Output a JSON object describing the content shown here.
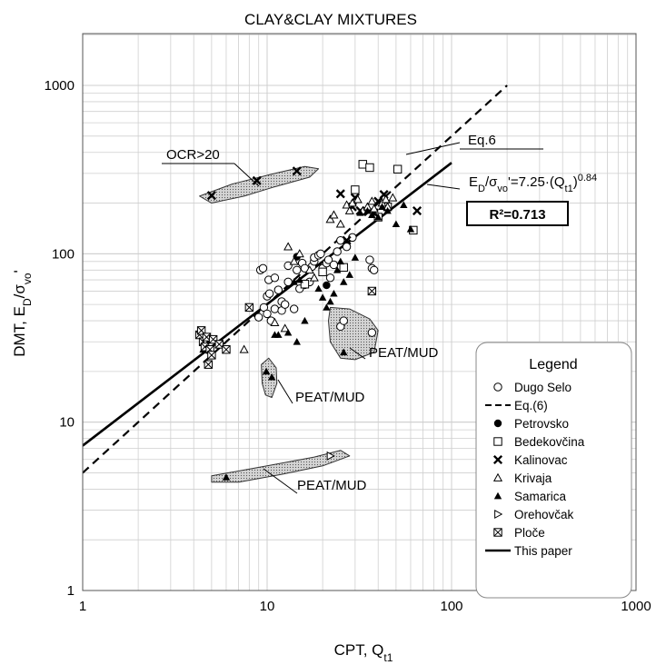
{
  "chart_data": {
    "type": "scatter",
    "title": "CLAY&CLAY MIXTURES",
    "xlabel": {
      "main": "CPT, Q",
      "sub": "t1"
    },
    "ylabel": {
      "prefix": "DMT, E",
      "sub1": "D",
      "mid": "/σ",
      "sub2": "vo",
      "suffix": "'"
    },
    "xscale": "log",
    "yscale": "log",
    "xlim": [
      1,
      1000
    ],
    "ylim": [
      1,
      2000
    ],
    "xticks": [
      "1",
      "10",
      "100",
      "1000"
    ],
    "yticks": [
      "1",
      "10",
      "100",
      "1000"
    ],
    "grid": true,
    "legend": {
      "title": "Legend",
      "placement": "bottom-right",
      "entries": [
        {
          "label": "Dugo Selo",
          "marker": "circle-open"
        },
        {
          "label": "Eq.(6)",
          "marker": "dashed-line"
        },
        {
          "label": "Petrovsko",
          "marker": "circle-filled"
        },
        {
          "label": "Bedekovčina",
          "marker": "square-open"
        },
        {
          "label": "Kalinovac",
          "marker": "x-cross"
        },
        {
          "label": "Krivaja",
          "marker": "triangle-open"
        },
        {
          "label": "Samarica",
          "marker": "triangle-filled"
        },
        {
          "label": "Orehovčak",
          "marker": "triangle-right-open"
        },
        {
          "label": "Ploče",
          "marker": "square-crossed"
        },
        {
          "label": "This paper",
          "marker": "solid-line"
        }
      ]
    },
    "lines": [
      {
        "name": "Eq.6",
        "style": "dashed",
        "x": [
          1,
          200
        ],
        "y": [
          5.0,
          1000
        ]
      },
      {
        "name": "This paper",
        "style": "solid",
        "x": [
          1,
          100
        ],
        "y": [
          7.25,
          347
        ]
      }
    ],
    "annotations": {
      "eq6": "Eq.6",
      "fit_equation": {
        "a": "E",
        "b": "D",
        "c": "/σ",
        "d": "vo",
        "e": "'=7.25·(Q",
        "f": "t1",
        "g": ")",
        "h": "0.84"
      },
      "r2": "R²=0.713",
      "ocr": "OCR>20",
      "peat1": "PEAT/MUD",
      "peat2": "PEAT/MUD",
      "peat3": "PEAT/MUD"
    },
    "regions": [
      {
        "label": "OCR>20",
        "center": [
          9,
          260
        ],
        "points": [
          [
            4.3,
            220
          ],
          [
            6.5,
            260
          ],
          [
            11,
            300
          ],
          [
            16,
            330
          ],
          [
            19,
            320
          ],
          [
            17,
            285
          ],
          [
            11,
            250
          ],
          [
            7.5,
            220
          ],
          [
            5,
            200
          ]
        ]
      },
      {
        "label": "PEAT/MUD",
        "points": [
          [
            22,
            48
          ],
          [
            28,
            47
          ],
          [
            36,
            41
          ],
          [
            40,
            35
          ],
          [
            38,
            26
          ],
          [
            30,
            23.5
          ],
          [
            25,
            24
          ],
          [
            22,
            30
          ],
          [
            21.5,
            40
          ]
        ]
      },
      {
        "label": "PEAT/MUD",
        "points": [
          [
            9.3,
            22
          ],
          [
            10.2,
            24
          ],
          [
            11.2,
            21
          ],
          [
            11.3,
            17
          ],
          [
            10.6,
            14
          ],
          [
            9.8,
            14.5
          ],
          [
            9.4,
            17
          ]
        ]
      },
      {
        "label": "PEAT/MUD",
        "points": [
          [
            5,
            4.8
          ],
          [
            10,
            5.5
          ],
          [
            18,
            6.2
          ],
          [
            25,
            6.8
          ],
          [
            28,
            6.3
          ],
          [
            20,
            5.5
          ],
          [
            12,
            4.9
          ],
          [
            7,
            4.4
          ],
          [
            5,
            4.4
          ]
        ]
      }
    ],
    "series": [
      {
        "name": "Dugo Selo",
        "marker": "circle-open",
        "x": [
          9.0,
          9.2,
          9.5,
          9.6,
          10,
          10,
          10.2,
          10.3,
          10.5,
          11,
          11,
          11.5,
          12,
          12,
          12.5,
          13,
          13,
          14,
          14.5,
          15,
          15.5,
          16,
          17,
          17.5,
          18,
          18,
          19,
          19.5,
          20,
          21,
          21.5,
          22,
          23,
          24,
          25,
          27,
          29,
          36,
          37,
          38,
          25,
          26,
          37
        ],
        "y": [
          42,
          80,
          82,
          48,
          44,
          56,
          70,
          58,
          40,
          47,
          72,
          61,
          52,
          46,
          50,
          68,
          85,
          47,
          80,
          62,
          88,
          82,
          68,
          84,
          90,
          95,
          98,
          100,
          82,
          88,
          92,
          72,
          86,
          103,
          120,
          110,
          125,
          92,
          82,
          80,
          37,
          40,
          34
        ]
      },
      {
        "name": "Petrovsko",
        "marker": "circle-filled",
        "x": [
          14.5,
          16,
          21
        ],
        "y": [
          96,
          65,
          65
        ]
      },
      {
        "name": "Bedekovčina",
        "marker": "square-open",
        "x": [
          16,
          20,
          26,
          30,
          33,
          36,
          40,
          45,
          51,
          62
        ],
        "y": [
          66,
          78,
          83,
          240,
          340,
          325,
          165,
          190,
          318,
          138
        ]
      },
      {
        "name": "Kalinovac",
        "marker": "x-cross",
        "x": [
          5,
          8.8,
          14.5,
          25,
          27,
          29,
          30,
          32,
          38,
          40,
          43,
          65
        ],
        "y": [
          222,
          272,
          310,
          227,
          120,
          190,
          215,
          180,
          175,
          205,
          225,
          180
        ]
      },
      {
        "name": "Krivaja",
        "marker": "triangle-open",
        "x": [
          7.5,
          11,
          12.5,
          13,
          14,
          15,
          17,
          18,
          22,
          23,
          25,
          27,
          28,
          29,
          31,
          33,
          35,
          37,
          38,
          42,
          44,
          45,
          48
        ],
        "y": [
          27,
          39,
          36,
          110,
          90,
          100,
          80,
          72,
          160,
          170,
          150,
          195,
          180,
          200,
          210,
          180,
          190,
          205,
          185,
          200,
          210,
          190,
          215
        ]
      },
      {
        "name": "Samarica",
        "marker": "triangle-filled",
        "x": [
          4.5,
          4.6,
          4.7,
          6,
          9.9,
          10.6,
          11,
          11.5,
          13,
          14,
          14.5,
          15,
          16,
          19,
          20,
          21,
          22,
          23,
          24,
          25,
          26,
          28,
          30,
          32,
          35,
          37,
          40,
          42,
          45,
          50,
          55,
          60,
          26
        ],
        "y": [
          27,
          29,
          31,
          4.7,
          20,
          18.5,
          33,
          33,
          34,
          68,
          30,
          70,
          40,
          62,
          55,
          48,
          52,
          58,
          80,
          90,
          68,
          75,
          95,
          175,
          180,
          170,
          165,
          190,
          180,
          150,
          195,
          140,
          26
        ]
      },
      {
        "name": "Orehovčak",
        "marker": "triangle-right-open",
        "x": [
          22
        ],
        "y": [
          6.3
        ]
      },
      {
        "name": "Ploče",
        "marker": "square-crossed",
        "x": [
          4.3,
          4.4,
          4.5,
          4.6,
          4.7,
          4.8,
          4.9,
          5.0,
          5.1,
          5.5,
          6.0,
          8.0,
          37
        ],
        "y": [
          33,
          35,
          30,
          28,
          32,
          22,
          27,
          25,
          31,
          29,
          27,
          48,
          60
        ]
      }
    ]
  }
}
